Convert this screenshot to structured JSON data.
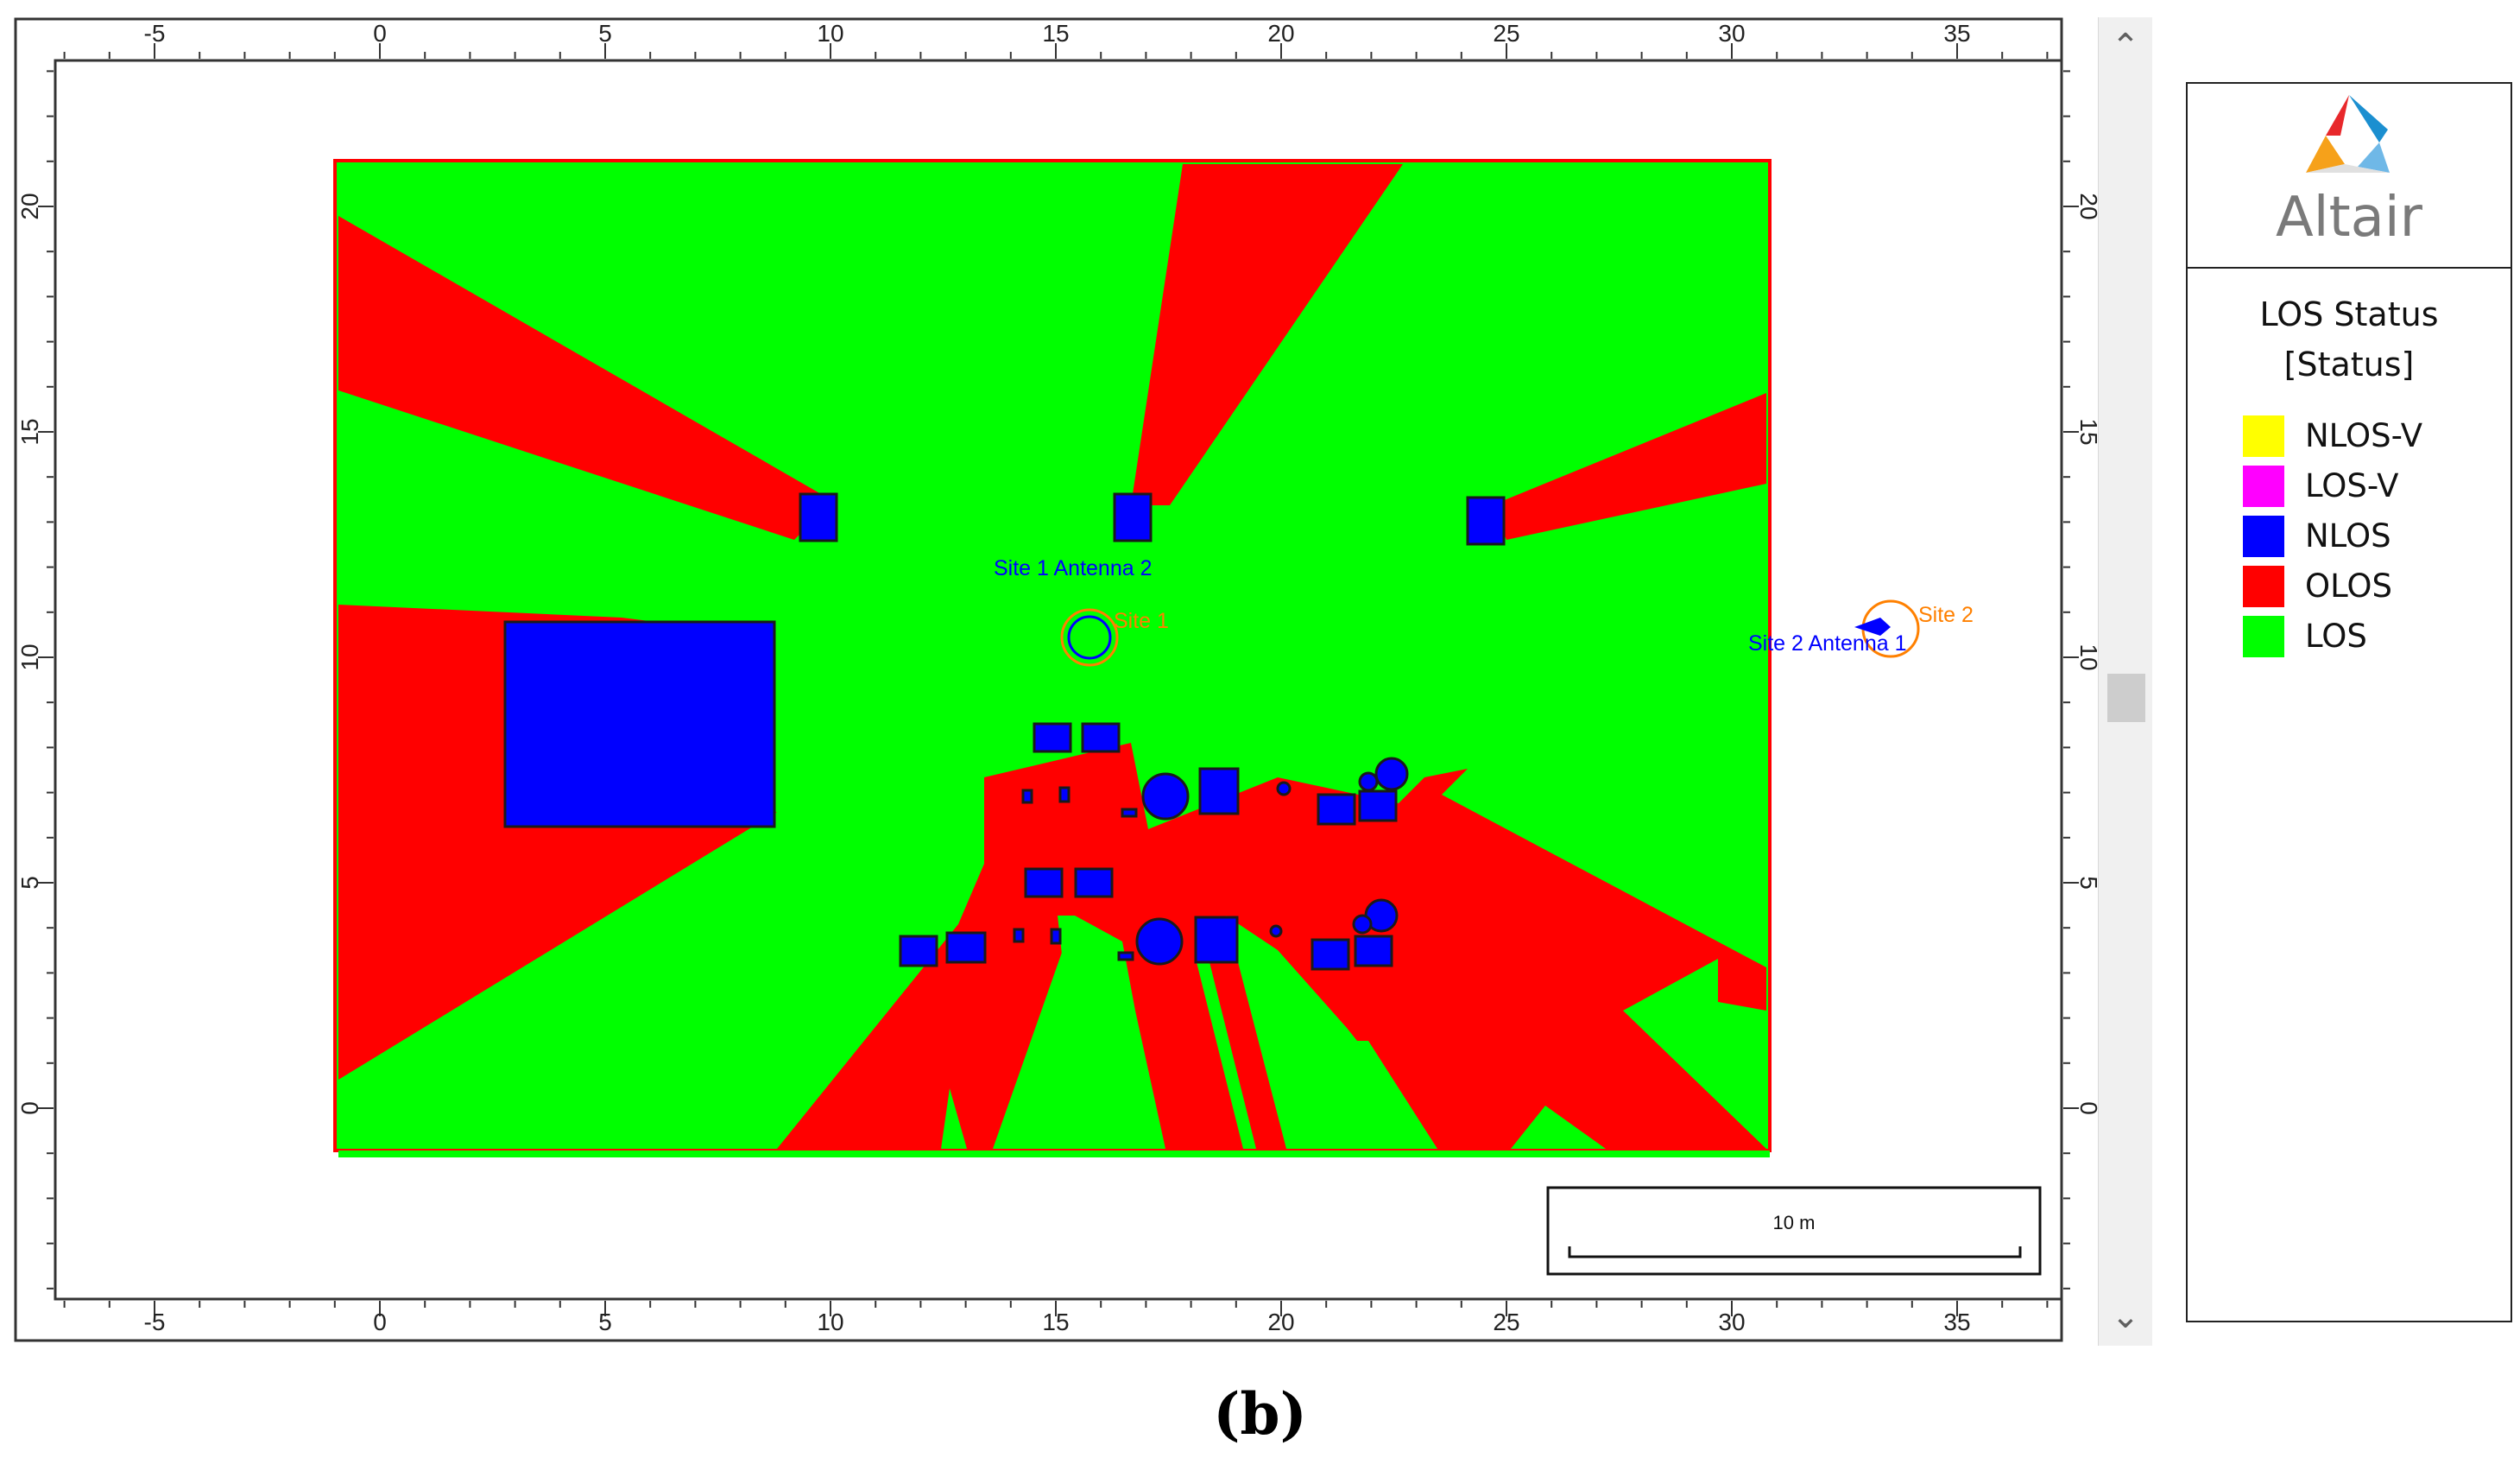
{
  "view": {
    "x_axis_ticks": [
      "-5",
      "0",
      "5",
      "10",
      "15",
      "20",
      "25",
      "30",
      "35"
    ],
    "y_axis_ticks": [
      "20",
      "15",
      "10",
      "5",
      "0"
    ],
    "scale_bar_label": "10 m",
    "sites": [
      {
        "name": "Site 1",
        "antenna_label": "Site 1 Antenna 2"
      },
      {
        "name": "Site 2",
        "antenna_label": "Site 2 Antenna 1"
      }
    ]
  },
  "scrollbar": {
    "up_arrow": "chevron-up-icon",
    "down_arrow": "chevron-down-icon",
    "up_glyph": "⌃",
    "down_glyph": "⌄"
  },
  "legend": {
    "brand": "Altair",
    "title_line1": "LOS Status",
    "title_line2": "[Status]",
    "items": [
      {
        "label": "NLOS-V",
        "color": "#ffff00"
      },
      {
        "label": "LOS-V",
        "color": "#ff00ff"
      },
      {
        "label": "NLOS",
        "color": "#0000ff"
      },
      {
        "label": "OLOS",
        "color": "#ff0000"
      },
      {
        "label": "LOS",
        "color": "#00ff00"
      }
    ]
  },
  "colors": {
    "los": "#00ff00",
    "olos": "#ff0000",
    "nlos": "#0000ff",
    "site_marker": "#ff8000",
    "site_label": "#0000ff"
  },
  "caption": "(b)"
}
